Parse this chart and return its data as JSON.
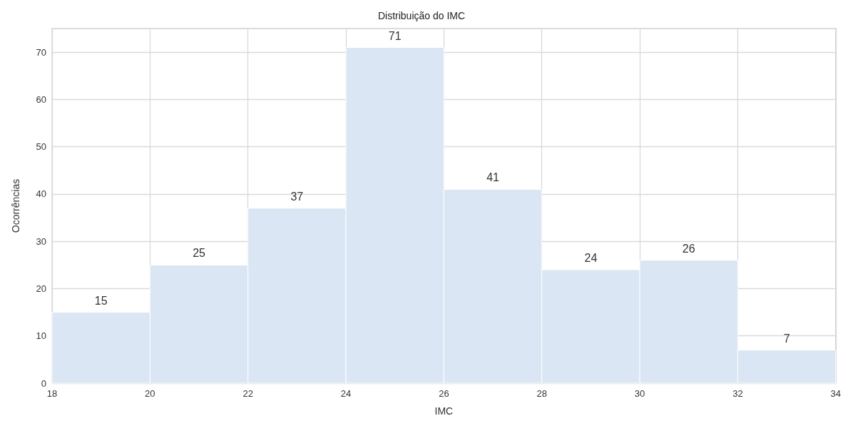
{
  "chart_data": {
    "type": "histogram",
    "title": "Distribuição do IMC",
    "xlabel": "IMC",
    "ylabel": "Ocorrências",
    "bins": [
      18,
      20,
      22,
      24,
      26,
      28,
      30,
      32,
      34
    ],
    "values": [
      15,
      25,
      37,
      71,
      41,
      24,
      26,
      7
    ],
    "color": "#dae6f4",
    "xlim": [
      18,
      34
    ],
    "xticks": [
      18,
      20,
      22,
      24,
      26,
      28,
      30,
      32,
      34
    ],
    "ylim": [
      0,
      75
    ],
    "yticks": [
      0,
      10,
      20,
      30,
      40,
      50,
      60,
      70
    ],
    "grid": true,
    "data_labels": true
  }
}
